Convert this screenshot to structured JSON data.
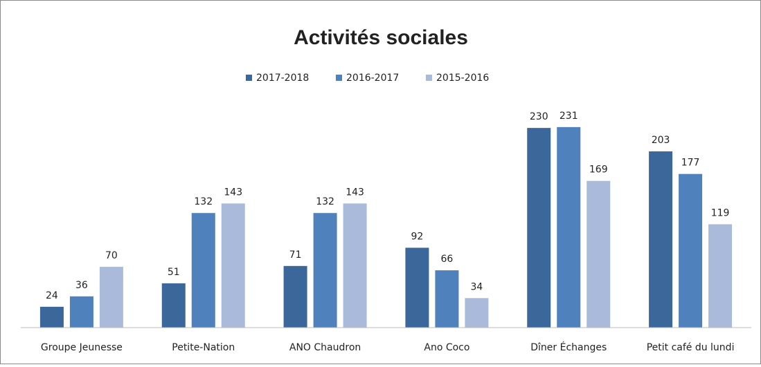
{
  "chart_data": {
    "type": "bar",
    "title": "Activités sociales",
    "categories": [
      "Groupe Jeunesse",
      "Petite-Nation",
      "ANO Chaudron",
      "Ano Coco",
      "Dîner Échanges",
      "Petit café du lundi"
    ],
    "series": [
      {
        "name": "2017-2018",
        "color": "#3c679a",
        "values": [
          24,
          51,
          71,
          92,
          230,
          203
        ]
      },
      {
        "name": "2016-2017",
        "color": "#4f81bd",
        "values": [
          36,
          132,
          132,
          66,
          231,
          177
        ]
      },
      {
        "name": "2015-2016",
        "color": "#a9badb",
        "values": [
          70,
          143,
          143,
          34,
          169,
          119
        ]
      }
    ],
    "ylim": [
      0,
      250
    ],
    "legend": "top"
  }
}
